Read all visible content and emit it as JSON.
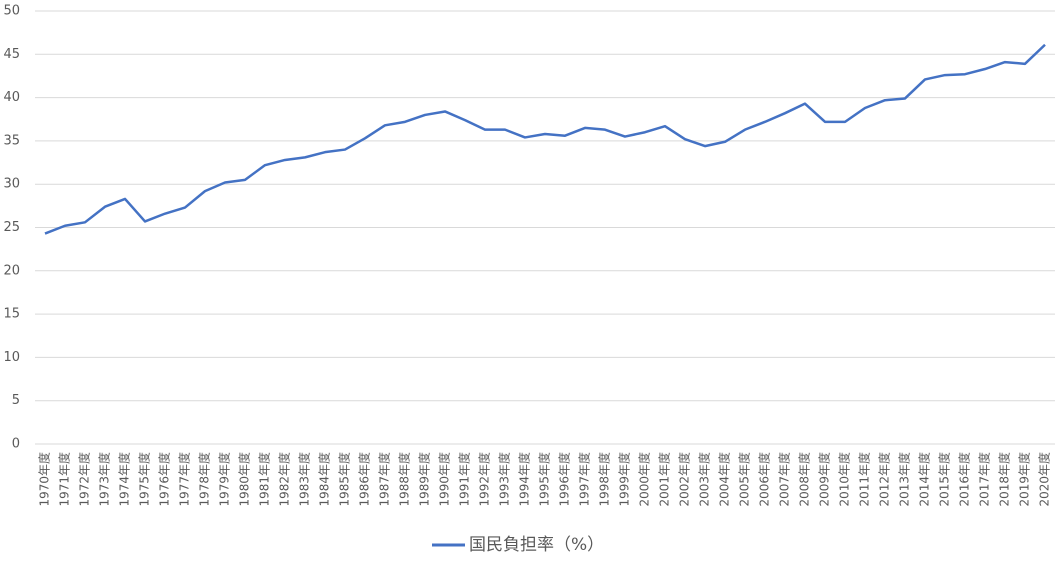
{
  "chart_data": {
    "type": "line",
    "categories": [
      "1970年度",
      "1971年度",
      "1972年度",
      "1973年度",
      "1974年度",
      "1975年度",
      "1976年度",
      "1977年度",
      "1978年度",
      "1979年度",
      "1980年度",
      "1981年度",
      "1982年度",
      "1983年度",
      "1984年度",
      "1985年度",
      "1986年度",
      "1987年度",
      "1988年度",
      "1989年度",
      "1990年度",
      "1991年度",
      "1992年度",
      "1993年度",
      "1994年度",
      "1995年度",
      "1996年度",
      "1997年度",
      "1998年度",
      "1999年度",
      "2000年度",
      "2001年度",
      "2002年度",
      "2003年度",
      "2004年度",
      "2005年度",
      "2006年度",
      "2007年度",
      "2008年度",
      "2009年度",
      "2010年度",
      "2011年度",
      "2012年度",
      "2013年度",
      "2014年度",
      "2015年度",
      "2016年度",
      "2017年度",
      "2018年度",
      "2019年度",
      "2020年度"
    ],
    "series": [
      {
        "name": "国民負担率（%）",
        "color": "#4472c4",
        "values": [
          24.3,
          25.2,
          25.6,
          27.4,
          28.3,
          25.7,
          26.6,
          27.3,
          29.2,
          30.2,
          30.5,
          32.2,
          32.8,
          33.1,
          33.7,
          34.0,
          35.3,
          36.8,
          37.2,
          38.0,
          38.4,
          37.4,
          36.3,
          36.3,
          35.4,
          35.8,
          35.6,
          36.5,
          36.3,
          35.5,
          36.0,
          36.7,
          35.2,
          34.4,
          34.9,
          36.3,
          37.2,
          38.2,
          39.3,
          37.2,
          37.2,
          38.8,
          39.7,
          39.9,
          42.1,
          42.6,
          42.7,
          43.3,
          44.1,
          43.9,
          46.1
        ]
      }
    ],
    "ylim": [
      0,
      50
    ],
    "yticks": [
      0,
      5,
      10,
      15,
      20,
      25,
      30,
      35,
      40,
      45,
      50
    ],
    "grid": true,
    "legend": "bottom"
  }
}
